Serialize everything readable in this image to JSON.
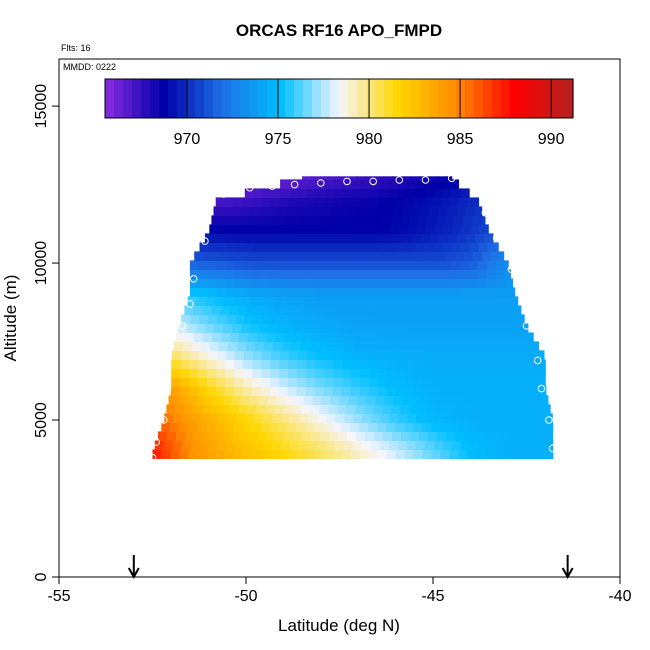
{
  "chart_data": {
    "type": "heatmap",
    "title": "ORCAS RF16 APO_FMPD",
    "annotations": {
      "flights": "Flts: 16",
      "date": "MMDD: 0222"
    },
    "xlabel": "Latitude (deg N)",
    "ylabel": "Altitude (m)",
    "xlim": [
      -55,
      -40
    ],
    "ylim": [
      0,
      16500
    ],
    "xticks": [
      -55,
      -50,
      -45,
      -40
    ],
    "yticks": [
      0,
      5000,
      10000,
      15000
    ],
    "colorbar": {
      "range": [
        965.5,
        991.2
      ],
      "ticks": [
        970,
        975,
        980,
        985,
        990
      ],
      "colors": [
        "#8a2be2",
        "#0000a8",
        "#1e6fe6",
        "#00bfff",
        "#f5f5ff",
        "#ffd700",
        "#ff8c00",
        "#ff0000",
        "#b22222"
      ]
    },
    "field_rows": [
      {
        "alt": 4000,
        "lat_min": -52.5,
        "lat_max": -41.8,
        "values": [
          987.5,
          984.5,
          983.0,
          981.8,
          980.6,
          979.3,
          978.0,
          976.5,
          975.0,
          974.5,
          974.5
        ]
      },
      {
        "alt": 5000,
        "lat_min": -52.2,
        "lat_max": -41.8,
        "values": [
          985.5,
          983.5,
          981.8,
          980.2,
          978.7,
          977.2,
          975.8,
          974.8,
          974.5,
          974.5,
          974.5
        ]
      },
      {
        "alt": 6000,
        "lat_min": -52.0,
        "lat_max": -42.0,
        "values": [
          984.0,
          981.5,
          979.5,
          978.0,
          976.8,
          975.8,
          975.0,
          974.5,
          974.5,
          974.5,
          974.5
        ]
      },
      {
        "alt": 7000,
        "lat_min": -52.0,
        "lat_max": -42.0,
        "values": [
          980.5,
          978.8,
          977.2,
          976.0,
          975.2,
          974.7,
          974.5,
          974.4,
          974.4,
          974.4,
          974.4
        ]
      },
      {
        "alt": 8000,
        "lat_min": -51.8,
        "lat_max": -42.5,
        "values": [
          977.8,
          976.5,
          975.4,
          974.7,
          974.3,
          974.1,
          974.0,
          974.0,
          974.0,
          974.0,
          974.0
        ]
      },
      {
        "alt": 9000,
        "lat_min": -51.5,
        "lat_max": -42.8,
        "values": [
          975.5,
          974.8,
          974.2,
          973.9,
          973.8,
          973.8,
          973.8,
          973.8,
          973.8,
          973.8,
          973.8
        ]
      },
      {
        "alt": 10000,
        "lat_min": -51.5,
        "lat_max": -43.0,
        "values": [
          971.5,
          971.3,
          971.0,
          971.0,
          971.0,
          971.0,
          971.0,
          971.0,
          971.0,
          971.5,
          973.2
        ]
      },
      {
        "alt": 11000,
        "lat_min": -51.0,
        "lat_max": -43.5,
        "values": [
          969.0,
          968.8,
          968.8,
          968.8,
          968.8,
          968.8,
          968.8,
          969.0,
          969.5,
          970.0,
          970.8
        ]
      },
      {
        "alt": 12000,
        "lat_min": -50.8,
        "lat_max": -43.8,
        "values": [
          967.0,
          967.3,
          967.6,
          968.0,
          968.2,
          968.4,
          968.5,
          968.8,
          969.0,
          969.5,
          970.0
        ]
      },
      {
        "alt": 12700,
        "lat_min": -48.5,
        "lat_max": -44.5,
        "values": [
          966.5,
          966.8,
          967.0,
          967.2,
          967.4,
          967.6,
          967.8,
          968.0,
          968.2,
          968.4,
          968.5
        ]
      }
    ],
    "flight_track": [
      {
        "lat": -52.5,
        "alt": 3800
      },
      {
        "lat": -52.4,
        "alt": 4300
      },
      {
        "lat": -52.2,
        "alt": 5000
      },
      {
        "lat": -52.1,
        "alt": 6000
      },
      {
        "lat": -51.7,
        "alt": 8000
      },
      {
        "lat": -51.5,
        "alt": 8700
      },
      {
        "lat": -51.4,
        "alt": 9500
      },
      {
        "lat": -51.1,
        "alt": 10700
      },
      {
        "lat": -50.6,
        "alt": 12200
      },
      {
        "lat": -49.9,
        "alt": 12400
      },
      {
        "lat": -49.3,
        "alt": 12450
      },
      {
        "lat": -48.7,
        "alt": 12500
      },
      {
        "lat": -48.0,
        "alt": 12550
      },
      {
        "lat": -47.3,
        "alt": 12600
      },
      {
        "lat": -46.6,
        "alt": 12600
      },
      {
        "lat": -45.9,
        "alt": 12650
      },
      {
        "lat": -45.2,
        "alt": 12650
      },
      {
        "lat": -44.5,
        "alt": 12700
      },
      {
        "lat": -43.9,
        "alt": 12300
      },
      {
        "lat": -43.6,
        "alt": 11600
      },
      {
        "lat": -43.4,
        "alt": 11200
      },
      {
        "lat": -43.3,
        "alt": 10800
      },
      {
        "lat": -42.9,
        "alt": 9800
      },
      {
        "lat": -42.7,
        "alt": 9100
      },
      {
        "lat": -42.5,
        "alt": 8000
      },
      {
        "lat": -42.2,
        "alt": 6900
      },
      {
        "lat": -42.1,
        "alt": 6000
      },
      {
        "lat": -41.9,
        "alt": 5000
      },
      {
        "lat": -41.8,
        "alt": 4100
      }
    ],
    "arrows": [
      -53.0,
      -41.4
    ]
  }
}
